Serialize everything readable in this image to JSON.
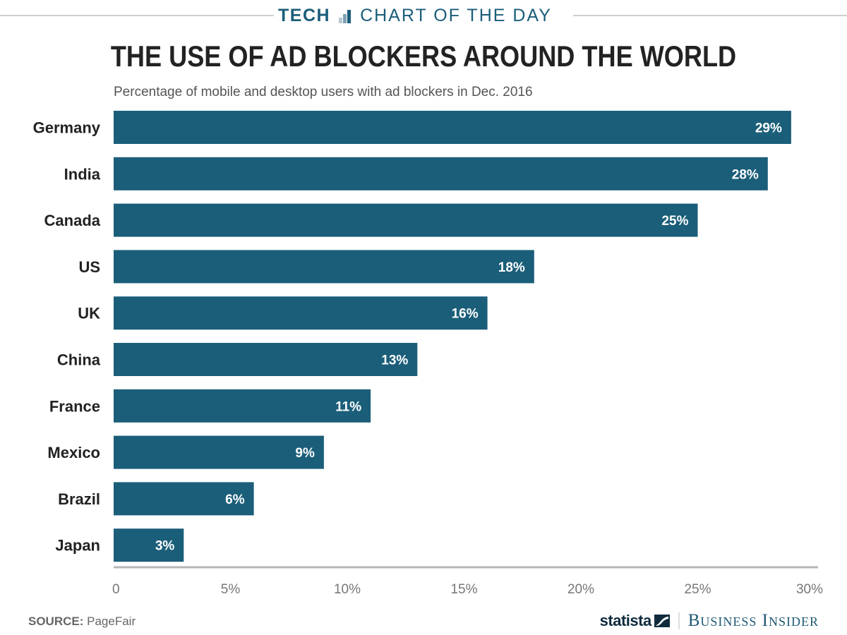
{
  "header": {
    "section": "TECH",
    "series_label": "CHART OF THE DAY",
    "icon": "bar-chart-icon"
  },
  "colors": {
    "bar": "#1b5e79",
    "bar_label": "#ffffff",
    "category_label": "#222222",
    "axis": "#b5b5b5",
    "tick_label": "#777777",
    "accent": "#1a5e7a"
  },
  "chart_data": {
    "type": "bar",
    "orientation": "horizontal",
    "title": "THE USE OF AD BLOCKERS AROUND THE WORLD",
    "subtitle": "Percentage of mobile and desktop users with ad blockers in Dec. 2016",
    "categories": [
      "Germany",
      "India",
      "Canada",
      "US",
      "UK",
      "China",
      "France",
      "Mexico",
      "Brazil",
      "Japan"
    ],
    "values": [
      29,
      28,
      25,
      18,
      16,
      13,
      11,
      9,
      6,
      3
    ],
    "data_labels": [
      "29%",
      "28%",
      "25%",
      "18%",
      "16%",
      "13%",
      "11%",
      "9%",
      "6%",
      "3%"
    ],
    "xlabel": "",
    "ylabel": "",
    "xlim": [
      0,
      30
    ],
    "x_ticks": [
      0,
      5,
      10,
      15,
      20,
      25,
      30
    ],
    "x_tick_labels": [
      "0",
      "5%",
      "10%",
      "15%",
      "20%",
      "25%",
      "30%"
    ],
    "grid": false,
    "legend": "none"
  },
  "footer": {
    "source_label": "SOURCE:",
    "source_value": "PageFair",
    "logo_statista": "statista",
    "logo_business_insider": "Business Insider"
  }
}
